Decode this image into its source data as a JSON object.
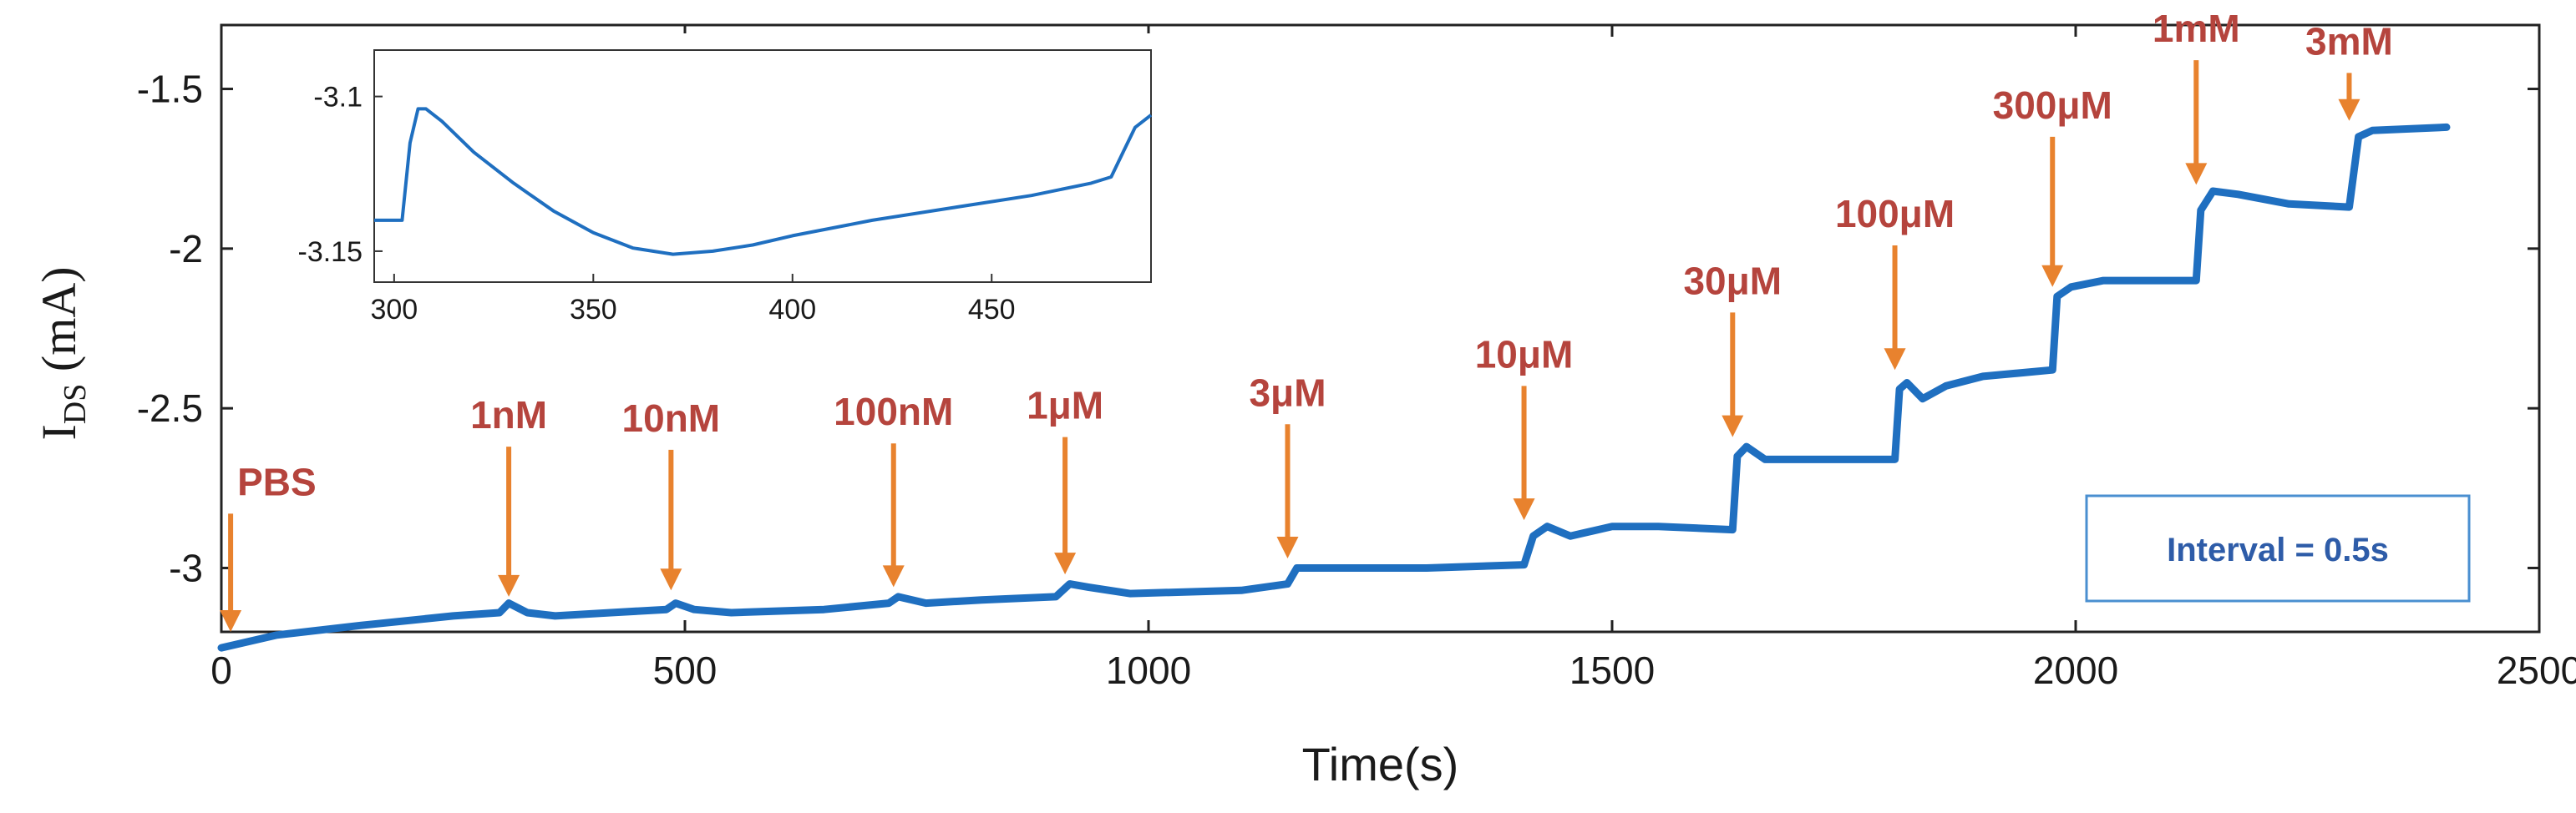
{
  "colors": {
    "series": "#1f6fc0",
    "annotation": "#b5443d",
    "arrow": "#e8822e",
    "note_border": "#4a8fd0",
    "note_text": "#2e5ca8",
    "axis": "#222222",
    "grid": "#d9d9d9"
  },
  "chart_data": {
    "type": "line",
    "title": "",
    "xlabel": "Time(s)",
    "ylabel_main": "I",
    "ylabel_sub": "DS",
    "ylabel_unit": " (mA)",
    "xlim": [
      0,
      2500
    ],
    "ylim": [
      -3.2,
      -1.3
    ],
    "xticks": [
      0,
      500,
      1000,
      1500,
      2000,
      2500
    ],
    "xtick_labels": [
      "0",
      "500",
      "1000",
      "1500",
      "2000",
      "2500"
    ],
    "yticks": [
      -3,
      -2.5,
      -2,
      -1.5
    ],
    "ytick_labels": [
      "-3",
      "-2.5",
      "-2",
      "-1.5"
    ],
    "grid": false,
    "series": [
      {
        "name": "I_DS",
        "x": [
          0,
          60,
          150,
          250,
          300,
          310,
          330,
          360,
          420,
          480,
          490,
          510,
          550,
          650,
          720,
          730,
          760,
          820,
          900,
          915,
          935,
          980,
          1100,
          1150,
          1160,
          1190,
          1300,
          1405,
          1415,
          1430,
          1455,
          1500,
          1550,
          1630,
          1635,
          1645,
          1665,
          1700,
          1760,
          1805,
          1810,
          1818,
          1835,
          1860,
          1900,
          1975,
          1980,
          1995,
          2030,
          2130,
          2135,
          2148,
          2175,
          2230,
          2295,
          2305,
          2320,
          2400
        ],
        "y": [
          -3.25,
          -3.21,
          -3.18,
          -3.15,
          -3.14,
          -3.11,
          -3.14,
          -3.15,
          -3.14,
          -3.13,
          -3.11,
          -3.13,
          -3.14,
          -3.13,
          -3.11,
          -3.09,
          -3.11,
          -3.1,
          -3.09,
          -3.05,
          -3.06,
          -3.08,
          -3.07,
          -3.05,
          -3.0,
          -3.0,
          -3.0,
          -2.99,
          -2.9,
          -2.87,
          -2.9,
          -2.87,
          -2.87,
          -2.88,
          -2.65,
          -2.62,
          -2.66,
          -2.66,
          -2.66,
          -2.66,
          -2.44,
          -2.42,
          -2.47,
          -2.43,
          -2.4,
          -2.38,
          -2.15,
          -2.12,
          -2.1,
          -2.1,
          -1.88,
          -1.82,
          -1.83,
          -1.86,
          -1.87,
          -1.65,
          -1.63,
          -1.62
        ]
      }
    ],
    "annotations": [
      {
        "label": "PBS",
        "x": 10,
        "y_tip": -3.2,
        "y_tail": -2.83
      },
      {
        "label": "1nM",
        "x": 310,
        "y_tip": -3.09,
        "y_tail": -2.62
      },
      {
        "label": "10nM",
        "x": 485,
        "y_tip": -3.07,
        "y_tail": -2.63
      },
      {
        "label": "100nM",
        "x": 725,
        "y_tip": -3.06,
        "y_tail": -2.61
      },
      {
        "label": "1μM",
        "x": 910,
        "y_tip": -3.02,
        "y_tail": -2.59
      },
      {
        "label": "3μM",
        "x": 1150,
        "y_tip": -2.97,
        "y_tail": -2.55
      },
      {
        "label": "10μM",
        "x": 1405,
        "y_tip": -2.85,
        "y_tail": -2.43
      },
      {
        "label": "30μM",
        "x": 1630,
        "y_tip": -2.59,
        "y_tail": -2.2
      },
      {
        "label": "100μM",
        "x": 1805,
        "y_tip": -2.38,
        "y_tail": -1.99
      },
      {
        "label": "300μM",
        "x": 1975,
        "y_tip": -2.12,
        "y_tail": -1.65
      },
      {
        "label": "1mM",
        "x": 2130,
        "y_tip": -1.8,
        "y_tail": -1.41
      },
      {
        "label": "3mM",
        "x": 2295,
        "y_tip": -1.6,
        "y_tail": -1.45
      }
    ],
    "note": "Interval  = 0.5s",
    "inset": {
      "type": "line",
      "xlim": [
        295,
        490
      ],
      "ylim": [
        -3.16,
        -3.085
      ],
      "xticks": [
        300,
        350,
        400,
        450
      ],
      "xtick_labels": [
        "300",
        "350",
        "400",
        "450"
      ],
      "yticks": [
        -3.1,
        -3.15
      ],
      "ytick_labels": [
        "-3.1",
        "-3.15"
      ],
      "series": [
        {
          "name": "inset",
          "x": [
            295,
            300,
            302,
            304,
            306,
            308,
            312,
            320,
            330,
            340,
            350,
            360,
            370,
            380,
            390,
            400,
            420,
            440,
            460,
            475,
            480,
            483,
            486,
            490
          ],
          "y": [
            -3.14,
            -3.14,
            -3.14,
            -3.115,
            -3.104,
            -3.104,
            -3.108,
            -3.118,
            -3.128,
            -3.137,
            -3.144,
            -3.149,
            -3.151,
            -3.15,
            -3.148,
            -3.145,
            -3.14,
            -3.136,
            -3.132,
            -3.128,
            -3.126,
            -3.118,
            -3.11,
            -3.106
          ]
        }
      ]
    }
  }
}
